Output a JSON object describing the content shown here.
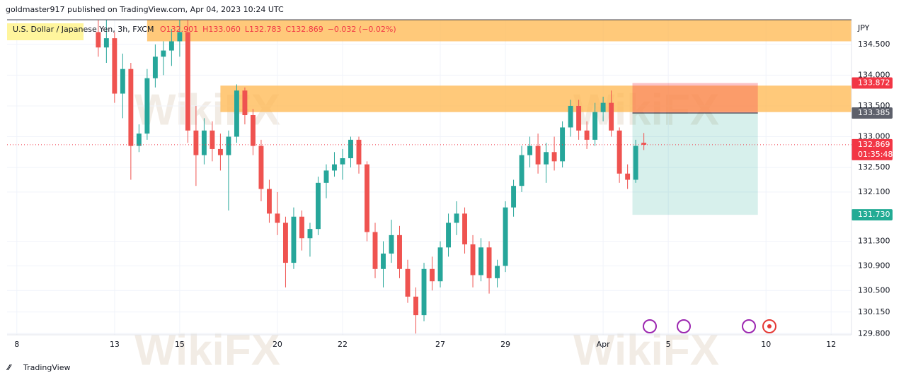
{
  "header": {
    "publisher": "goldmaster917 published on TradingView.com, Apr 04, 2023 10:24 UTC",
    "symbol": "U.S. Dollar / Japanese Yen, 3h, FXCM",
    "ohlc": [
      "O132.901",
      "H133.060",
      "L132.783",
      "C132.869"
    ],
    "change": "−0.032 (−0.02%)"
  },
  "footer": {
    "brand": "TradingView"
  },
  "watermark": "WikiFX",
  "chart_data": {
    "type": "candlestick",
    "currency": "JPY",
    "up_color": "#26a69a",
    "down_color": "#ef5350",
    "xlim": [
      -1.2,
      102.5
    ],
    "ylim": [
      129.78,
      134.9
    ],
    "grid": true,
    "xticks": [
      {
        "value": 0,
        "label": "8"
      },
      {
        "value": 12,
        "label": "13"
      },
      {
        "value": 20,
        "label": "15"
      },
      {
        "value": 32,
        "label": "20"
      },
      {
        "value": 40,
        "label": "22"
      },
      {
        "value": 52,
        "label": "27"
      },
      {
        "value": 60,
        "label": "29"
      },
      {
        "value": 72,
        "label": "Apr"
      },
      {
        "value": 80,
        "label": "5"
      },
      {
        "value": 92,
        "label": "10"
      },
      {
        "value": 100,
        "label": "12"
      }
    ],
    "yticks": [
      {
        "value": 134.5,
        "label": "134.500"
      },
      {
        "value": 134.0,
        "label": "134.000"
      },
      {
        "value": 133.5,
        "label": "133.500"
      },
      {
        "value": 133.0,
        "label": "133.000"
      },
      {
        "value": 132.5,
        "label": "132.500"
      },
      {
        "value": 132.1,
        "label": "132.100"
      },
      {
        "value": 131.3,
        "label": "131.300"
      },
      {
        "value": 130.9,
        "label": "130.900"
      },
      {
        "value": 130.5,
        "label": "130.500"
      },
      {
        "value": 130.15,
        "label": "130.150"
      },
      {
        "value": 129.8,
        "label": "129.800"
      }
    ],
    "x": [
      10,
      11,
      12,
      13,
      14,
      15,
      16,
      17,
      18,
      19,
      20,
      21,
      22,
      23,
      24,
      25,
      26,
      27,
      28,
      29,
      30,
      31,
      32,
      33,
      34,
      35,
      36,
      37,
      38,
      39,
      40,
      41,
      42,
      43,
      44,
      45,
      46,
      47,
      48,
      49,
      50,
      51,
      52,
      53,
      54,
      55,
      56,
      57,
      58,
      59,
      60,
      61,
      62,
      63,
      64,
      65,
      66,
      67,
      68,
      69,
      70,
      71,
      72,
      73,
      74,
      75,
      76,
      77
    ],
    "open": [
      134.7,
      134.45,
      134.6,
      133.7,
      134.1,
      132.85,
      133.05,
      133.95,
      134.3,
      134.4,
      134.55,
      134.7,
      133.1,
      132.7,
      133.1,
      132.8,
      132.7,
      133.0,
      133.75,
      133.35,
      132.85,
      132.15,
      131.75,
      131.6,
      130.95,
      131.7,
      131.35,
      131.5,
      132.25,
      132.45,
      132.55,
      132.65,
      132.95,
      132.55,
      131.45,
      130.85,
      131.1,
      131.4,
      130.85,
      130.4,
      130.1,
      130.85,
      130.65,
      131.2,
      131.6,
      131.75,
      131.25,
      130.75,
      131.2,
      130.7,
      130.9,
      131.85,
      132.2,
      132.7,
      132.85,
      132.55,
      132.75,
      132.6,
      133.15,
      133.5,
      133.1,
      132.95,
      133.4,
      133.55,
      133.1,
      132.4,
      132.3,
      132.901
    ],
    "high": [
      135.0,
      134.95,
      134.7,
      134.35,
      134.2,
      133.2,
      134.1,
      134.5,
      134.55,
      134.75,
      134.95,
      134.9,
      133.5,
      133.3,
      133.25,
      133.05,
      133.1,
      133.85,
      133.8,
      133.45,
      132.95,
      132.3,
      132.1,
      131.7,
      131.85,
      131.8,
      131.6,
      132.35,
      132.55,
      132.75,
      132.8,
      133.0,
      133.0,
      132.6,
      131.6,
      131.3,
      131.65,
      131.55,
      131.0,
      130.55,
      130.95,
      131.05,
      131.3,
      131.75,
      131.95,
      131.85,
      131.4,
      131.35,
      131.3,
      131.0,
      131.95,
      132.3,
      132.85,
      133.0,
      133.05,
      132.9,
      133.0,
      133.25,
      133.6,
      133.6,
      133.25,
      133.55,
      133.65,
      133.75,
      133.15,
      132.55,
      132.95,
      133.06
    ],
    "low": [
      134.3,
      134.2,
      133.55,
      133.3,
      132.3,
      132.75,
      132.95,
      133.8,
      134.0,
      134.15,
      134.3,
      132.9,
      132.2,
      132.55,
      132.6,
      132.45,
      131.8,
      132.9,
      133.2,
      132.7,
      131.95,
      131.6,
      131.4,
      130.55,
      130.85,
      131.15,
      131.05,
      131.4,
      132.0,
      132.35,
      132.3,
      132.5,
      132.4,
      131.3,
      130.7,
      130.55,
      130.95,
      130.7,
      130.3,
      129.8,
      130.0,
      130.5,
      130.55,
      131.05,
      131.4,
      131.1,
      130.55,
      130.65,
      130.45,
      130.55,
      130.8,
      131.7,
      132.1,
      132.5,
      132.4,
      132.25,
      132.45,
      132.5,
      133.0,
      132.95,
      132.8,
      132.85,
      133.25,
      133.0,
      132.25,
      132.15,
      132.25,
      132.783
    ],
    "close": [
      134.45,
      134.6,
      133.7,
      134.1,
      132.85,
      133.05,
      133.95,
      134.3,
      134.4,
      134.55,
      134.7,
      133.1,
      132.7,
      133.1,
      132.8,
      132.7,
      133.0,
      133.75,
      133.35,
      132.85,
      132.15,
      131.75,
      131.6,
      130.95,
      131.7,
      131.35,
      131.5,
      132.25,
      132.45,
      132.55,
      132.65,
      132.95,
      132.55,
      131.45,
      130.85,
      131.1,
      131.4,
      130.85,
      130.4,
      130.1,
      130.85,
      130.65,
      131.2,
      131.6,
      131.75,
      131.25,
      130.75,
      131.2,
      130.7,
      130.9,
      131.85,
      132.2,
      132.7,
      132.85,
      132.55,
      132.75,
      132.6,
      133.15,
      133.5,
      133.1,
      132.95,
      133.4,
      133.55,
      133.1,
      132.4,
      132.3,
      132.85,
      132.869
    ],
    "zones": [
      {
        "x": 16,
        "top": 134.9,
        "bottom": 134.55,
        "color": "#ffb74d"
      },
      {
        "x": 25,
        "top": 133.83,
        "bottom": 133.4,
        "color": "#ffb74d"
      }
    ],
    "position": {
      "x": [
        75.6,
        91
      ],
      "stop": {
        "value": 133.872,
        "label": "133.872",
        "color": "#f23645"
      },
      "entry": {
        "value": 133.385,
        "label": "133.385",
        "color": "#5d606b"
      },
      "target": {
        "value": 131.73,
        "label": "131.730",
        "color": "#22ab94"
      }
    },
    "last_price": {
      "value": 132.869,
      "label": "132.869",
      "countdown": "01:35:48",
      "color": "#f23645"
    }
  }
}
